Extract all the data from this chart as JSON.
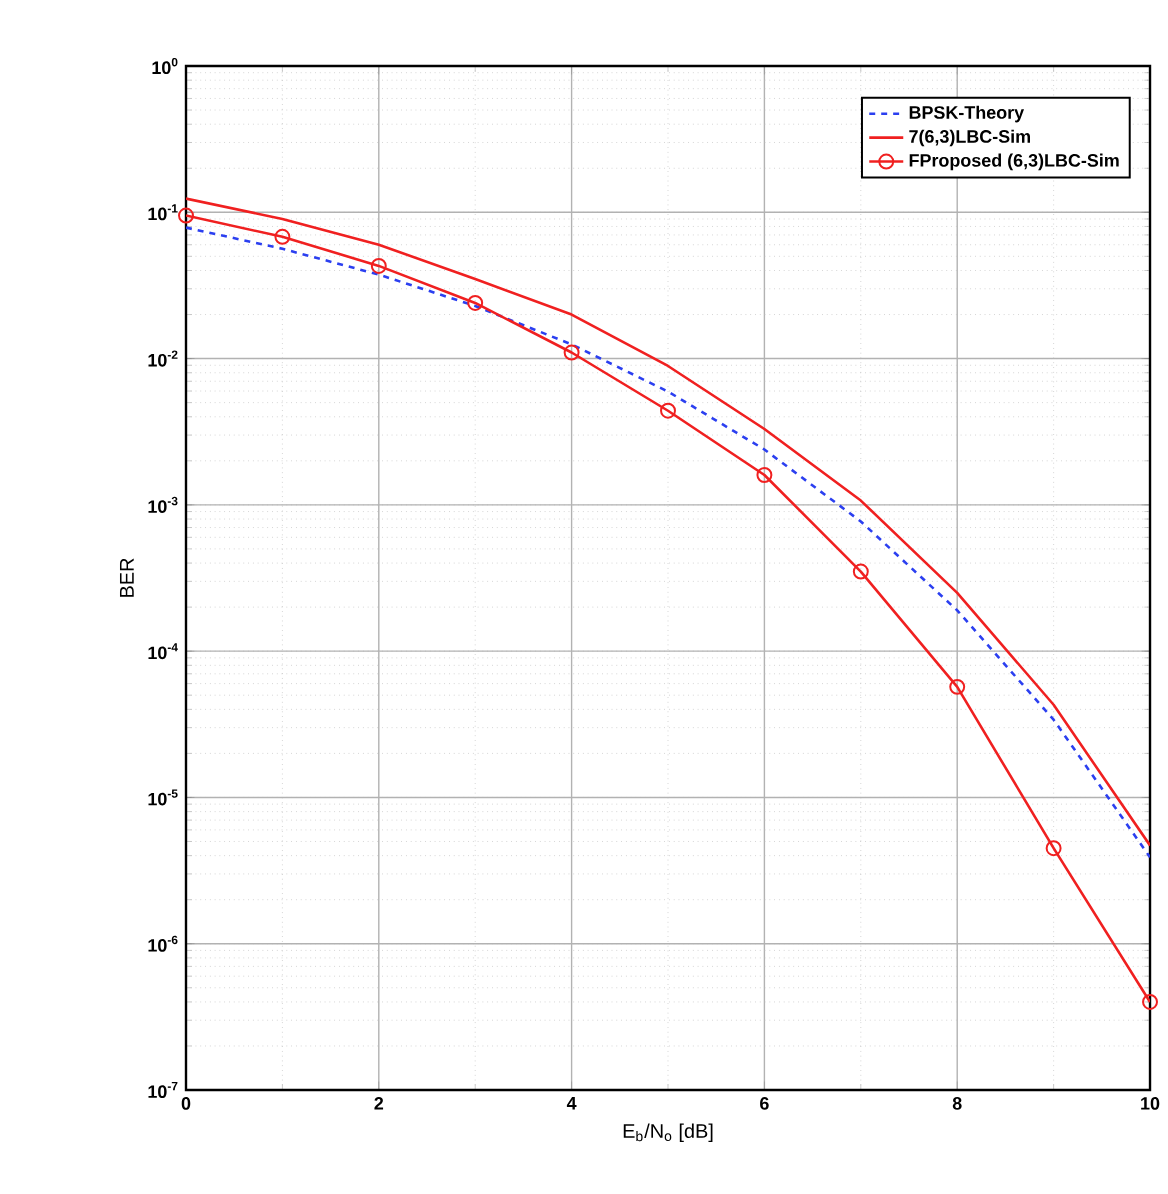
{
  "chart_data": {
    "type": "line",
    "xlabel": "E$_{b}$/N$_{o}$ [dB]",
    "ylabel": "BER",
    "x": [
      0,
      1,
      2,
      3,
      4,
      5,
      6,
      7,
      8,
      9,
      10
    ],
    "series": [
      {
        "name": "BPSK-Theory",
        "color": "#2b3ff0",
        "line_style": "dashed",
        "marker": "none",
        "values": [
          0.0786,
          0.0563,
          0.0375,
          0.0229,
          0.0125,
          0.00595,
          0.00239,
          0.00077,
          0.00019,
          3.4e-05,
          3.9e-06
        ]
      },
      {
        "name": "7(6,3)LBC-Sim",
        "color": "#f02020",
        "line_style": "solid",
        "marker": "none",
        "values": [
          0.124,
          0.09,
          0.06,
          0.035,
          0.02,
          0.0089,
          0.0033,
          0.00107,
          0.00025,
          4.3e-05,
          4.7e-06
        ]
      },
      {
        "name": "FProposed (6,3)LBC-Sim",
        "color": "#f02020",
        "line_style": "solid",
        "marker": "circle",
        "values": [
          0.095,
          0.068,
          0.043,
          0.024,
          0.011,
          0.0044,
          0.0016,
          0.00035,
          5.7e-05,
          4.5e-06,
          4e-07
        ]
      }
    ],
    "xlim": [
      0,
      10
    ],
    "xticks": [
      0,
      2,
      4,
      6,
      8,
      10
    ],
    "ylim": [
      1e-07,
      1
    ],
    "log": "y",
    "yticks": [
      {
        "value": 1e-07,
        "label": "10$^{-7}$"
      },
      {
        "value": 1e-06,
        "label": "10$^{-6}$"
      },
      {
        "value": 1e-05,
        "label": "10$^{-5}$"
      },
      {
        "value": 0.0001,
        "label": "10$^{-4}$"
      },
      {
        "value": 0.001,
        "label": "10$^{-3}$"
      },
      {
        "value": 0.01,
        "label": "10$^{-2}$"
      },
      {
        "value": 0.1,
        "label": "10$^{-1}$"
      },
      {
        "value": 1,
        "label": "10$^{0}$"
      }
    ],
    "grid": true,
    "legend": "top right"
  }
}
